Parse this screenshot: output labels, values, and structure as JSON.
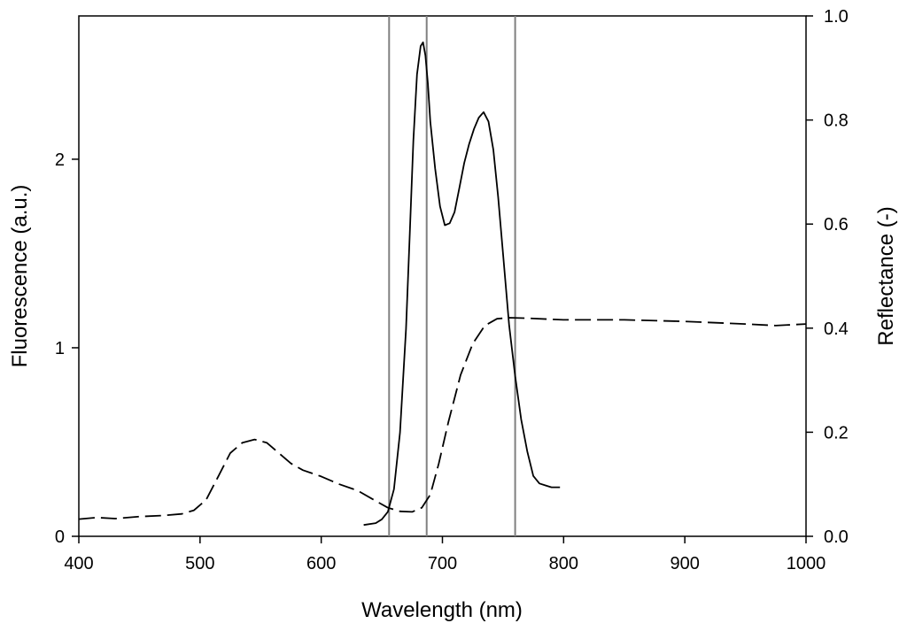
{
  "chart_data": {
    "type": "line",
    "title": "",
    "xlabel": "Wavelength (nm)",
    "ylabel_left": "Fluorescence (a.u.)",
    "ylabel_right": "Reflectance (-)",
    "xlim": [
      400,
      1000
    ],
    "ylim_left": [
      0,
      2.76
    ],
    "ylim_right": [
      0,
      1.0
    ],
    "grid": false,
    "x_ticks": [
      "400",
      "500",
      "600",
      "700",
      "800",
      "900",
      "1000"
    ],
    "y_left_ticks": [
      "0",
      "1",
      "2"
    ],
    "y_right_ticks": [
      "0.0",
      "0.2",
      "0.4",
      "0.6",
      "0.8",
      "1.0"
    ],
    "vertical_lines": [
      656,
      687,
      760
    ],
    "series": [
      {
        "style": "solid",
        "axis": "left",
        "color": "#000000",
        "x": [
          635,
          645,
          650,
          655,
          660,
          665,
          670,
          673,
          676,
          679,
          682,
          684,
          686,
          688,
          690,
          694,
          698,
          702,
          706,
          710,
          714,
          718,
          722,
          726,
          730,
          734,
          738,
          742,
          746,
          750,
          755,
          760,
          765,
          770,
          775,
          780,
          785,
          790,
          797
        ],
        "y": [
          0.06,
          0.07,
          0.09,
          0.13,
          0.25,
          0.55,
          1.1,
          1.6,
          2.1,
          2.45,
          2.6,
          2.62,
          2.55,
          2.4,
          2.2,
          1.95,
          1.75,
          1.65,
          1.66,
          1.72,
          1.85,
          1.98,
          2.08,
          2.16,
          2.22,
          2.25,
          2.2,
          2.05,
          1.8,
          1.5,
          1.12,
          0.85,
          0.62,
          0.45,
          0.32,
          0.28,
          0.27,
          0.26,
          0.26
        ]
      },
      {
        "style": "dashed",
        "axis": "right",
        "color": "#000000",
        "x": [
          400,
          415,
          430,
          450,
          470,
          485,
          495,
          505,
          515,
          525,
          535,
          545,
          555,
          565,
          575,
          585,
          600,
          615,
          630,
          645,
          655,
          665,
          675,
          683,
          690,
          697,
          705,
          715,
          725,
          735,
          745,
          755,
          770,
          800,
          850,
          900,
          950,
          975,
          1000
        ],
        "y": [
          0.033,
          0.036,
          0.034,
          0.038,
          0.04,
          0.043,
          0.05,
          0.07,
          0.115,
          0.16,
          0.18,
          0.186,
          0.18,
          0.16,
          0.14,
          0.127,
          0.115,
          0.1,
          0.088,
          0.068,
          0.055,
          0.048,
          0.047,
          0.055,
          0.08,
          0.14,
          0.22,
          0.31,
          0.37,
          0.405,
          0.418,
          0.42,
          0.419,
          0.416,
          0.416,
          0.413,
          0.408,
          0.405,
          0.408
        ]
      }
    ]
  }
}
